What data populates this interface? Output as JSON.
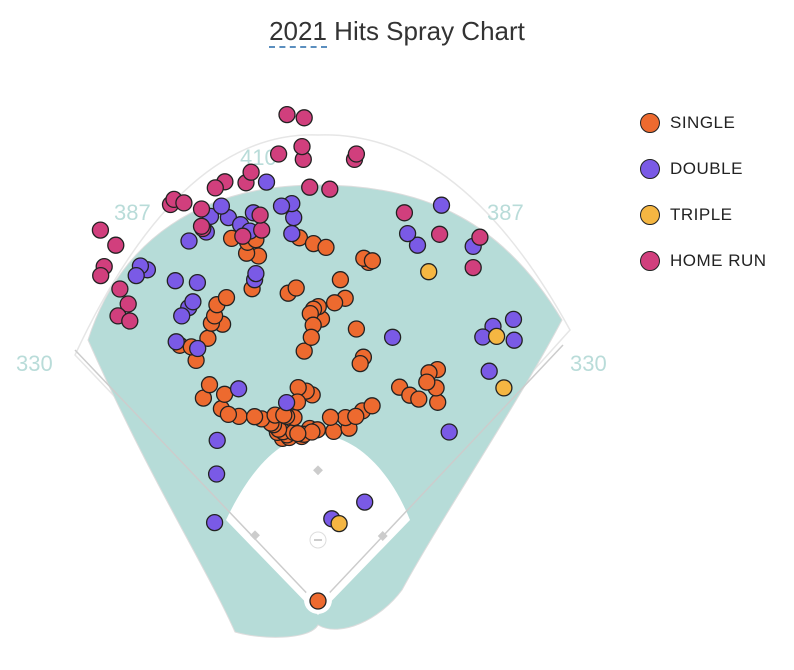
{
  "chart_data": {
    "type": "scatter",
    "title_year": "2021",
    "title_rest": " Hits Spray Chart",
    "distance_labels": [
      "330",
      "387",
      "410",
      "387",
      "330"
    ],
    "legend": [
      {
        "key": "single",
        "label": "SINGLE",
        "color": "#ed6a2f"
      },
      {
        "key": "double",
        "label": "DOUBLE",
        "color": "#7a5ae6"
      },
      {
        "key": "triple",
        "label": "TRIPLE",
        "color": "#f5b642"
      },
      {
        "key": "hr",
        "label": "HOME RUN",
        "color": "#d13f7d"
      }
    ],
    "hits": [
      {
        "t": "single",
        "x": -11.1,
        "y": 50.8
      },
      {
        "t": "single",
        "x": -9.0,
        "y": 51.1
      },
      {
        "t": "single",
        "x": -9.7,
        "y": 51.9
      },
      {
        "t": "single",
        "x": -12.7,
        "y": 52.7
      },
      {
        "t": "single",
        "x": -10.9,
        "y": 52.9
      },
      {
        "t": "single",
        "x": -7.6,
        "y": 52.7
      },
      {
        "t": "single",
        "x": -5.1,
        "y": 51.4
      },
      {
        "t": "single",
        "x": -4.9,
        "y": 52.2
      },
      {
        "t": "single",
        "x": -2.6,
        "y": 53.9
      },
      {
        "t": "single",
        "x": -12.3,
        "y": 53.7
      },
      {
        "t": "single",
        "x": -13.9,
        "y": 55.1
      },
      {
        "t": "single",
        "x": -14.7,
        "y": 55.6
      },
      {
        "t": "single",
        "x": -17.6,
        "y": 56.9
      },
      {
        "t": "single",
        "x": -24.7,
        "y": 57.7
      },
      {
        "t": "single",
        "x": -30.2,
        "y": 60.1
      },
      {
        "t": "single",
        "x": -35.8,
        "y": 63.4
      },
      {
        "t": "single",
        "x": -28.0,
        "y": 58.3
      },
      {
        "t": "single",
        "x": -19.8,
        "y": 57.6
      },
      {
        "t": "single",
        "x": -7.5,
        "y": 57.3
      },
      {
        "t": "single",
        "x": -9.8,
        "y": 57.7
      },
      {
        "t": "single",
        "x": -13.4,
        "y": 58.1
      },
      {
        "t": "single",
        "x": -29.2,
        "y": 64.6
      },
      {
        "t": "single",
        "x": -33.9,
        "y": 67.6
      },
      {
        "t": "single",
        "x": -38.1,
        "y": 75.2
      },
      {
        "t": "single",
        "x": -43.2,
        "y": 79.9
      },
      {
        "t": "single",
        "x": -39.6,
        "y": 79.4
      },
      {
        "t": "single",
        "x": -34.4,
        "y": 82.1
      },
      {
        "t": "single",
        "x": -29.8,
        "y": 86.5
      },
      {
        "t": "single",
        "x": -33.3,
        "y": 86.8
      },
      {
        "t": "single",
        "x": -32.3,
        "y": 89.1
      },
      {
        "t": "single",
        "x": -31.6,
        "y": 92.6
      },
      {
        "t": "single",
        "x": -28.6,
        "y": 94.8
      },
      {
        "t": "single",
        "x": -20.6,
        "y": 97.6
      },
      {
        "t": "single",
        "x": -9.3,
        "y": 96.2
      },
      {
        "t": "single",
        "x": 1.1,
        "y": 88.1
      },
      {
        "t": "single",
        "x": 0.1,
        "y": 92.0
      },
      {
        "t": "single",
        "x": -1.4,
        "y": 91.2
      },
      {
        "t": "single",
        "x": -2.4,
        "y": 89.8
      },
      {
        "t": "single",
        "x": -1.5,
        "y": 86.2
      },
      {
        "t": "single",
        "x": -4.3,
        "y": 78.1
      },
      {
        "t": "single",
        "x": -2.1,
        "y": 82.4
      },
      {
        "t": "single",
        "x": -6.8,
        "y": 97.8
      },
      {
        "t": "single",
        "x": -18.6,
        "y": 107.8
      },
      {
        "t": "single",
        "x": -22.3,
        "y": 108.7
      },
      {
        "t": "single",
        "x": -22.0,
        "y": 112.1
      },
      {
        "t": "single",
        "x": -27.0,
        "y": 113.3
      },
      {
        "t": "single",
        "x": -19.4,
        "y": 112.9
      },
      {
        "t": "single",
        "x": -5.8,
        "y": 113.5
      },
      {
        "t": "single",
        "x": -1.4,
        "y": 111.7
      },
      {
        "t": "single",
        "x": 2.5,
        "y": 110.5
      },
      {
        "t": "single",
        "x": 7.0,
        "y": 100.4
      },
      {
        "t": "single",
        "x": 15.8,
        "y": 105.8
      },
      {
        "t": "single",
        "x": 14.3,
        "y": 107.1
      },
      {
        "t": "single",
        "x": 17.0,
        "y": 106.3
      },
      {
        "t": "single",
        "x": 8.5,
        "y": 94.6
      },
      {
        "t": "single",
        "x": 5.2,
        "y": 93.2
      },
      {
        "t": "single",
        "x": 12.0,
        "y": 85.0
      },
      {
        "t": "single",
        "x": 14.2,
        "y": 76.2
      },
      {
        "t": "single",
        "x": 13.2,
        "y": 74.2
      },
      {
        "t": "single",
        "x": -1.8,
        "y": 64.4
      },
      {
        "t": "single",
        "x": -3.7,
        "y": 65.6
      },
      {
        "t": "single",
        "x": -6.2,
        "y": 66.7
      },
      {
        "t": "single",
        "x": -6.4,
        "y": 62.2
      },
      {
        "t": "single",
        "x": -10.7,
        "y": 58.1
      },
      {
        "t": "single",
        "x": -0.2,
        "y": 53.5
      },
      {
        "t": "single",
        "x": 4.9,
        "y": 53.0
      },
      {
        "t": "single",
        "x": 9.7,
        "y": 54.0
      },
      {
        "t": "single",
        "x": 8.6,
        "y": 57.3
      },
      {
        "t": "single",
        "x": 3.9,
        "y": 57.4
      },
      {
        "t": "single",
        "x": 13.9,
        "y": 59.4
      },
      {
        "t": "single",
        "x": 11.8,
        "y": 57.7
      },
      {
        "t": "single",
        "x": 16.9,
        "y": 61.0
      },
      {
        "t": "single",
        "x": 25.5,
        "y": 66.8
      },
      {
        "t": "single",
        "x": 28.7,
        "y": 64.3
      },
      {
        "t": "single",
        "x": 31.5,
        "y": 63.1
      },
      {
        "t": "single",
        "x": 37.4,
        "y": 62.1
      },
      {
        "t": "single",
        "x": 36.9,
        "y": 66.6
      },
      {
        "t": "single",
        "x": 37.3,
        "y": 72.3
      },
      {
        "t": "single",
        "x": 34.7,
        "y": 71.3
      },
      {
        "t": "single",
        "x": 34.0,
        "y": 68.4
      },
      {
        "t": "single",
        "x": -4.3,
        "y": 52.1
      },
      {
        "t": "single",
        "x": -1.9,
        "y": 52.8
      },
      {
        "t": "single",
        "x": -6.3,
        "y": 52.3
      },
      {
        "t": "single",
        "x": 0.0,
        "y": 0.0
      },
      {
        "t": "double",
        "x": -37.7,
        "y": 99.5
      },
      {
        "t": "double",
        "x": -40.4,
        "y": 91.7
      },
      {
        "t": "double",
        "x": -42.6,
        "y": 89.1
      },
      {
        "t": "double",
        "x": -44.6,
        "y": 100.1
      },
      {
        "t": "double",
        "x": -53.3,
        "y": 103.5
      },
      {
        "t": "double",
        "x": -55.5,
        "y": 104.7
      },
      {
        "t": "double",
        "x": -56.8,
        "y": 101.7
      },
      {
        "t": "double",
        "x": -44.3,
        "y": 81.0
      },
      {
        "t": "double",
        "x": -39.1,
        "y": 93.5
      },
      {
        "t": "double",
        "x": -37.6,
        "y": 78.9
      },
      {
        "t": "double",
        "x": -40.3,
        "y": 112.5
      },
      {
        "t": "double",
        "x": -34.9,
        "y": 115.3
      },
      {
        "t": "double",
        "x": -28.0,
        "y": 119.8
      },
      {
        "t": "double",
        "x": -33.6,
        "y": 120.2
      },
      {
        "t": "double",
        "x": -30.2,
        "y": 123.4
      },
      {
        "t": "double",
        "x": -24.2,
        "y": 117.6
      },
      {
        "t": "double",
        "x": -20.2,
        "y": 121.3
      },
      {
        "t": "double",
        "x": -21.3,
        "y": 115.6
      },
      {
        "t": "double",
        "x": -7.6,
        "y": 119.8
      },
      {
        "t": "double",
        "x": -8.2,
        "y": 124.2
      },
      {
        "t": "double",
        "x": -11.4,
        "y": 123.4
      },
      {
        "t": "double",
        "x": -16.1,
        "y": 130.9
      },
      {
        "t": "double",
        "x": -8.2,
        "y": 114.8
      },
      {
        "t": "double",
        "x": -19.8,
        "y": 100.4
      },
      {
        "t": "double",
        "x": -19.4,
        "y": 102.3
      },
      {
        "t": "double",
        "x": -9.8,
        "y": 62.0
      },
      {
        "t": "double",
        "x": -31.5,
        "y": 50.2
      },
      {
        "t": "double",
        "x": -31.7,
        "y": 39.7
      },
      {
        "t": "double",
        "x": -32.3,
        "y": 24.5
      },
      {
        "t": "double",
        "x": -24.8,
        "y": 66.3
      },
      {
        "t": "double",
        "x": 14.6,
        "y": 30.9
      },
      {
        "t": "double",
        "x": 4.3,
        "y": 25.7
      },
      {
        "t": "double",
        "x": 41.0,
        "y": 52.8
      },
      {
        "t": "double",
        "x": 53.5,
        "y": 71.8
      },
      {
        "t": "double",
        "x": 61.3,
        "y": 81.5
      },
      {
        "t": "double",
        "x": 61.1,
        "y": 88.0
      },
      {
        "t": "double",
        "x": 54.7,
        "y": 85.8
      },
      {
        "t": "double",
        "x": 48.5,
        "y": 110.8
      },
      {
        "t": "double",
        "x": 38.6,
        "y": 123.7
      },
      {
        "t": "double",
        "x": 31.1,
        "y": 111.2
      },
      {
        "t": "double",
        "x": 28.0,
        "y": 114.8
      },
      {
        "t": "double",
        "x": 23.3,
        "y": 82.4
      },
      {
        "t": "double",
        "x": 51.5,
        "y": 82.5
      },
      {
        "t": "triple",
        "x": 34.6,
        "y": 102.9
      },
      {
        "t": "triple",
        "x": 58.1,
        "y": 66.6
      },
      {
        "t": "triple",
        "x": 55.8,
        "y": 82.7
      },
      {
        "t": "triple",
        "x": 6.6,
        "y": 24.2
      },
      {
        "t": "hr",
        "x": -61.9,
        "y": 97.5
      },
      {
        "t": "hr",
        "x": -59.3,
        "y": 92.8
      },
      {
        "t": "hr",
        "x": -62.5,
        "y": 89.1
      },
      {
        "t": "hr",
        "x": -58.8,
        "y": 87.5
      },
      {
        "t": "hr",
        "x": -66.8,
        "y": 104.5
      },
      {
        "t": "hr",
        "x": -67.9,
        "y": 101.7
      },
      {
        "t": "hr",
        "x": -63.2,
        "y": 111.2
      },
      {
        "t": "hr",
        "x": -68.0,
        "y": 115.9
      },
      {
        "t": "hr",
        "x": -46.1,
        "y": 123.9
      },
      {
        "t": "hr",
        "x": -45.0,
        "y": 125.5
      },
      {
        "t": "hr",
        "x": -41.9,
        "y": 124.4
      },
      {
        "t": "hr",
        "x": -36.0,
        "y": 116.4
      },
      {
        "t": "hr",
        "x": -36.4,
        "y": 117.1
      },
      {
        "t": "hr",
        "x": -23.5,
        "y": 114.0
      },
      {
        "t": "hr",
        "x": -17.6,
        "y": 115.9
      },
      {
        "t": "hr",
        "x": -18.1,
        "y": 120.6
      },
      {
        "t": "hr",
        "x": -29.1,
        "y": 131.0
      },
      {
        "t": "hr",
        "x": -32.1,
        "y": 129.1
      },
      {
        "t": "hr",
        "x": -36.4,
        "y": 122.5
      },
      {
        "t": "hr",
        "x": -22.5,
        "y": 130.7
      },
      {
        "t": "hr",
        "x": -20.9,
        "y": 134.0
      },
      {
        "t": "hr",
        "x": -2.6,
        "y": 129.3
      },
      {
        "t": "hr",
        "x": 3.7,
        "y": 128.7
      },
      {
        "t": "hr",
        "x": 11.4,
        "y": 138.0
      },
      {
        "t": "hr",
        "x": 12.0,
        "y": 139.7
      },
      {
        "t": "hr",
        "x": 27.0,
        "y": 121.3
      },
      {
        "t": "hr",
        "x": 38.0,
        "y": 114.6
      },
      {
        "t": "hr",
        "x": 50.6,
        "y": 113.7
      },
      {
        "t": "hr",
        "x": 48.5,
        "y": 104.2
      },
      {
        "t": "hr",
        "x": -4.6,
        "y": 138.0
      },
      {
        "t": "hr",
        "x": -12.3,
        "y": 139.7
      },
      {
        "t": "hr",
        "x": -5.0,
        "y": 142.0
      },
      {
        "t": "hr",
        "x": -4.3,
        "y": 151.0
      },
      {
        "t": "hr",
        "x": -9.7,
        "y": 152.0
      }
    ]
  }
}
